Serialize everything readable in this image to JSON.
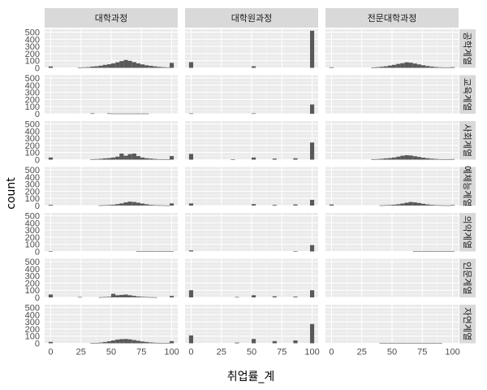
{
  "chart_data": {
    "type": "histogram-facet-grid",
    "xlabel": "취업률_계",
    "ylabel": "count",
    "xlim": [
      -5,
      105
    ],
    "ylim": [
      0,
      540
    ],
    "x_ticks": [
      "0",
      "25",
      "50",
      "75",
      "100"
    ],
    "y_ticks": [
      "0",
      "100",
      "200",
      "300",
      "400",
      "500"
    ],
    "x_tick_values": [
      0,
      25,
      50,
      75,
      100
    ],
    "y_tick_values": [
      0,
      100,
      200,
      300,
      400,
      500
    ],
    "bin_starts": [
      0,
      3.4,
      6.9,
      10.3,
      13.8,
      17.2,
      20.7,
      24.1,
      27.6,
      31.0,
      34.5,
      37.9,
      41.4,
      44.8,
      48.3,
      51.7,
      55.2,
      58.6,
      62.1,
      65.5,
      69.0,
      72.4,
      75.9,
      79.3,
      82.8,
      86.2,
      89.7,
      93.1,
      96.6,
      100
    ],
    "columns": [
      "대학과정",
      "대학원과정",
      "전문대학과정"
    ],
    "rows": [
      "공학계열",
      "교육계열",
      "사회계열",
      "예체능계열",
      "의약계열",
      "인문계열",
      "자연계열"
    ],
    "panels": [
      [
        [
          20,
          0,
          0,
          0,
          0,
          0,
          0,
          5,
          8,
          10,
          18,
          22,
          30,
          42,
          50,
          62,
          78,
          95,
          110,
          98,
          80,
          62,
          48,
          36,
          28,
          20,
          14,
          10,
          6,
          70
        ],
        [
          80,
          0,
          0,
          0,
          0,
          0,
          0,
          0,
          0,
          0,
          0,
          0,
          0,
          0,
          0,
          22,
          0,
          0,
          0,
          0,
          0,
          0,
          0,
          0,
          0,
          0,
          0,
          0,
          0,
          520
        ],
        [
          8,
          0,
          0,
          0,
          0,
          0,
          0,
          0,
          0,
          0,
          5,
          10,
          15,
          22,
          32,
          42,
          55,
          65,
          78,
          72,
          60,
          48,
          36,
          26,
          18,
          12,
          8,
          5,
          3,
          10
        ]
      ],
      [
        [
          0,
          0,
          0,
          0,
          0,
          0,
          0,
          0,
          0,
          0,
          5,
          0,
          0,
          0,
          5,
          3,
          3,
          3,
          3,
          3,
          3,
          3,
          3,
          3,
          0,
          0,
          0,
          0,
          0,
          0
        ],
        [
          5,
          0,
          0,
          0,
          0,
          0,
          0,
          0,
          0,
          0,
          0,
          0,
          0,
          0,
          0,
          5,
          0,
          0,
          0,
          0,
          0,
          0,
          0,
          0,
          0,
          0,
          0,
          0,
          0,
          130
        ],
        [
          0,
          0,
          0,
          0,
          0,
          0,
          0,
          0,
          0,
          0,
          0,
          0,
          0,
          0,
          0,
          0,
          0,
          0,
          0,
          0,
          0,
          0,
          0,
          0,
          0,
          0,
          0,
          0,
          0,
          0
        ]
      ],
      [
        [
          30,
          0,
          0,
          0,
          0,
          0,
          0,
          0,
          0,
          0,
          5,
          8,
          12,
          18,
          22,
          30,
          42,
          85,
          55,
          78,
          85,
          50,
          30,
          20,
          15,
          10,
          6,
          4,
          3,
          50
        ],
        [
          80,
          0,
          0,
          0,
          0,
          0,
          0,
          0,
          0,
          0,
          3,
          0,
          0,
          0,
          0,
          30,
          0,
          0,
          0,
          0,
          15,
          0,
          0,
          0,
          0,
          20,
          0,
          0,
          0,
          240
        ],
        [
          0,
          0,
          0,
          0,
          0,
          0,
          0,
          0,
          0,
          0,
          5,
          8,
          12,
          18,
          22,
          30,
          42,
          55,
          62,
          58,
          48,
          38,
          28,
          20,
          14,
          10,
          6,
          4,
          3,
          8
        ]
      ],
      [
        [
          10,
          0,
          0,
          0,
          0,
          0,
          0,
          0,
          0,
          0,
          0,
          0,
          3,
          5,
          8,
          12,
          20,
          30,
          45,
          55,
          50,
          40,
          28,
          18,
          10,
          6,
          4,
          3,
          2,
          30
        ],
        [
          30,
          0,
          0,
          0,
          0,
          0,
          0,
          0,
          0,
          0,
          0,
          0,
          0,
          0,
          0,
          20,
          0,
          0,
          0,
          0,
          10,
          0,
          0,
          0,
          0,
          15,
          0,
          0,
          0,
          80
        ],
        [
          15,
          0,
          0,
          0,
          0,
          0,
          0,
          0,
          0,
          0,
          0,
          0,
          3,
          5,
          8,
          12,
          18,
          28,
          40,
          50,
          45,
          36,
          25,
          16,
          10,
          6,
          4,
          3,
          2,
          8
        ]
      ],
      [
        [
          3,
          0,
          0,
          0,
          0,
          0,
          0,
          0,
          0,
          0,
          0,
          0,
          0,
          0,
          0,
          0,
          0,
          0,
          0,
          0,
          0,
          3,
          3,
          3,
          3,
          3,
          3,
          3,
          3,
          3
        ],
        [
          15,
          0,
          0,
          0,
          0,
          0,
          0,
          0,
          0,
          0,
          0,
          0,
          0,
          0,
          0,
          0,
          0,
          0,
          0,
          0,
          0,
          0,
          0,
          0,
          0,
          5,
          0,
          0,
          0,
          90
        ],
        [
          0,
          0,
          0,
          0,
          0,
          0,
          0,
          0,
          0,
          0,
          0,
          0,
          0,
          0,
          0,
          0,
          0,
          0,
          0,
          0,
          3,
          3,
          3,
          3,
          3,
          3,
          3,
          3,
          3,
          3
        ]
      ],
      [
        [
          40,
          0,
          0,
          0,
          0,
          0,
          0,
          5,
          0,
          0,
          0,
          0,
          3,
          5,
          8,
          50,
          30,
          35,
          40,
          30,
          20,
          12,
          8,
          5,
          3,
          2,
          0,
          0,
          0,
          20
        ],
        [
          100,
          0,
          0,
          0,
          0,
          0,
          0,
          0,
          0,
          0,
          0,
          5,
          0,
          0,
          0,
          30,
          0,
          0,
          0,
          0,
          15,
          0,
          0,
          0,
          0,
          10,
          0,
          0,
          0,
          100
        ],
        [
          0,
          0,
          0,
          0,
          0,
          0,
          0,
          0,
          0,
          0,
          0,
          0,
          0,
          0,
          0,
          0,
          0,
          0,
          0,
          0,
          0,
          0,
          0,
          0,
          0,
          0,
          0,
          0,
          0,
          0
        ]
      ],
      [
        [
          20,
          0,
          0,
          0,
          0,
          0,
          0,
          0,
          0,
          0,
          3,
          5,
          10,
          18,
          28,
          40,
          52,
          58,
          60,
          55,
          45,
          35,
          25,
          18,
          12,
          8,
          5,
          3,
          2,
          30
        ],
        [
          110,
          0,
          0,
          0,
          0,
          0,
          0,
          0,
          0,
          0,
          0,
          10,
          0,
          0,
          0,
          60,
          0,
          0,
          0,
          0,
          30,
          0,
          0,
          0,
          0,
          40,
          0,
          0,
          0,
          270
        ],
        [
          0,
          0,
          0,
          0,
          0,
          0,
          0,
          0,
          0,
          0,
          0,
          0,
          3,
          3,
          3,
          3,
          3,
          3,
          3,
          3,
          3,
          3,
          3,
          3,
          3,
          3,
          3,
          0,
          0,
          0
        ]
      ]
    ],
    "bar_color": "#595959",
    "panel_background": "#ebebeb",
    "strip_background": "#d9d9d9",
    "grid": true,
    "legend": "none"
  }
}
